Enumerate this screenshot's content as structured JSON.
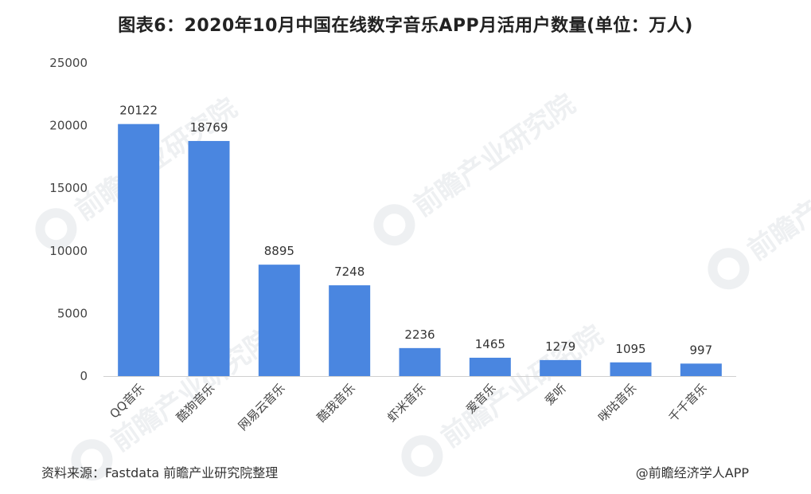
{
  "chart_data": {
    "type": "bar",
    "title": "图表6：2020年10月中国在线数字音乐APP月活用户数量(单位：万人)",
    "categories": [
      "QQ音乐",
      "酷狗音乐",
      "网易云音乐",
      "酷我音乐",
      "虾米音乐",
      "爱音乐",
      "爱听",
      "咪咕音乐",
      "千千音乐"
    ],
    "values": [
      20122,
      18769,
      8895,
      7248,
      2236,
      1465,
      1279,
      1095,
      997
    ],
    "ylim": [
      0,
      25000
    ],
    "yticks": [
      0,
      5000,
      10000,
      15000,
      20000,
      25000
    ],
    "xlabel": "",
    "ylabel": "",
    "grid": false,
    "bar_color": "#4a86e0"
  },
  "footer": {
    "source": "资料来源：Fastdata 前瞻产业研究院整理",
    "credit": "@前瞻经济学人APP"
  },
  "watermark": {
    "text": "前瞻产业研究院"
  }
}
